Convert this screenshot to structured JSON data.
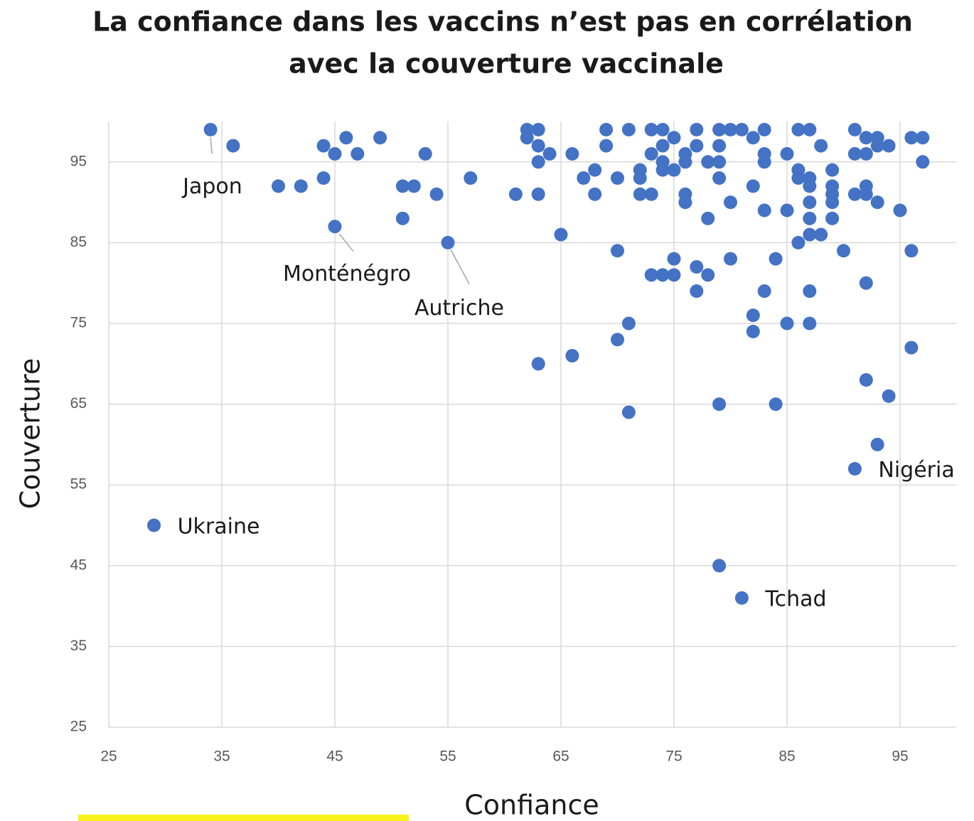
{
  "chart_data": {
    "type": "scatter",
    "title": [
      "La confiance dans les vaccins n’est pas en corrélation",
      "avec la couverture vaccinale"
    ],
    "x_label": "Confiance",
    "y_label": "Couverture",
    "color": "#4472c4",
    "grid": true,
    "xlim": [
      25,
      100
    ],
    "ylim": [
      25,
      100
    ],
    "xticks": [
      25,
      35,
      45,
      55,
      65,
      75,
      85,
      95
    ],
    "yticks": [
      25,
      35,
      45,
      55,
      65,
      75,
      85,
      95
    ],
    "x": [
      34,
      45,
      55,
      29,
      81,
      91,
      36,
      40,
      42,
      44,
      44,
      45,
      46,
      47,
      49,
      51,
      52,
      51,
      53,
      54,
      57,
      61,
      62,
      62,
      63,
      63,
      64,
      63,
      63,
      65,
      66,
      67,
      68,
      68,
      69,
      69,
      70,
      70,
      70,
      71,
      71,
      71,
      63,
      66,
      72,
      72,
      72,
      73,
      73,
      73,
      74,
      74,
      74,
      74,
      75,
      75,
      73,
      74,
      75,
      75,
      76,
      76,
      76,
      76,
      77,
      77,
      77,
      77,
      78,
      78,
      78,
      79,
      79,
      79,
      79,
      79,
      79,
      80,
      80,
      80,
      81,
      82,
      82,
      82,
      82,
      83,
      83,
      83,
      83,
      83,
      84,
      84,
      85,
      85,
      85,
      86,
      86,
      86,
      86,
      87,
      87,
      87,
      87,
      87,
      87,
      87,
      87,
      88,
      88,
      89,
      89,
      89,
      89,
      89,
      90,
      91,
      91,
      91,
      92,
      92,
      92,
      92,
      92,
      92,
      93,
      93,
      93,
      93,
      94,
      94,
      95,
      96,
      96,
      96,
      97,
      97
    ],
    "y": [
      99,
      87,
      85,
      50,
      41,
      57,
      97,
      92,
      92,
      97,
      93,
      96,
      98,
      96,
      98,
      92,
      92,
      88,
      96,
      91,
      93,
      91,
      99,
      98,
      99,
      97,
      96,
      95,
      91,
      86,
      96,
      93,
      94,
      91,
      99,
      97,
      93,
      84,
      73,
      99,
      75,
      64,
      70,
      71,
      94,
      93,
      91,
      91,
      99,
      96,
      99,
      97,
      95,
      94,
      98,
      94,
      81,
      81,
      81,
      83,
      96,
      95,
      91,
      90,
      99,
      97,
      82,
      79,
      95,
      88,
      81,
      99,
      97,
      95,
      93,
      65,
      45,
      99,
      90,
      83,
      99,
      98,
      92,
      76,
      74,
      99,
      96,
      95,
      89,
      79,
      83,
      65,
      96,
      89,
      75,
      99,
      94,
      93,
      85,
      99,
      93,
      92,
      90,
      88,
      86,
      79,
      75,
      97,
      86,
      94,
      92,
      91,
      90,
      88,
      84,
      99,
      96,
      91,
      98,
      96,
      92,
      91,
      80,
      68,
      98,
      97,
      90,
      60,
      97,
      66,
      89,
      98,
      84,
      72,
      98,
      95
    ],
    "point_labels": [
      "Japon",
      "Monténégro",
      "Autriche",
      "Ukraine",
      "Tchad",
      "Nigéria",
      null,
      null,
      null,
      null,
      null,
      null,
      null,
      null,
      null,
      null,
      null,
      null,
      null,
      null,
      null,
      null,
      null,
      null,
      null,
      null,
      null,
      null,
      null,
      null,
      null,
      null,
      null,
      null,
      null,
      null,
      null,
      null,
      null,
      null,
      null,
      null,
      null,
      null,
      null,
      null,
      null,
      null,
      null,
      null,
      null,
      null,
      null,
      null,
      null,
      null,
      null,
      null,
      null,
      null,
      null,
      null,
      null,
      null,
      null,
      null,
      null,
      null,
      null,
      null,
      null,
      null,
      null,
      null,
      null,
      null,
      null,
      null,
      null,
      null,
      null,
      null,
      null,
      null,
      null,
      null,
      null,
      null,
      null,
      null,
      null,
      null,
      null,
      null,
      null,
      null,
      null,
      null,
      null,
      null,
      null,
      null,
      null,
      null,
      null,
      null,
      null,
      null,
      null,
      null,
      null,
      null,
      null,
      null,
      null,
      null,
      null,
      null,
      null,
      null,
      null,
      null,
      null,
      null,
      null,
      null,
      null,
      null,
      null,
      null,
      null,
      null,
      null,
      null,
      null,
      null
    ]
  }
}
